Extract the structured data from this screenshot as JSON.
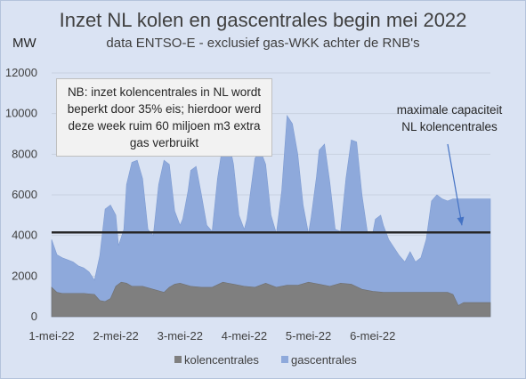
{
  "chart_data": {
    "type": "area",
    "title": "Inzet NL kolen en gascentrales begin mei 2022",
    "subtitle": "data ENTSO-E - exclusief gas-WKK achter de RNB's",
    "ylabel": "MW",
    "ylim": [
      0,
      12000
    ],
    "yticks": [
      "0",
      "2000",
      "4000",
      "6000",
      "8000",
      "10000",
      "12000"
    ],
    "x_tick_labels": [
      "1-mei-22",
      "2-mei-22",
      "3-mei-22",
      "4-mei-22",
      "5-mei-22",
      "6-mei-22"
    ],
    "x_range_hours": [
      0,
      164
    ],
    "stacked": true,
    "series": [
      {
        "name": "kolencentrales",
        "color": "#7f7f7f",
        "x": [
          0,
          2,
          4,
          8,
          12,
          16,
          18,
          20,
          22,
          24,
          26,
          28,
          30,
          34,
          38,
          42,
          44,
          46,
          48,
          52,
          56,
          60,
          64,
          68,
          72,
          76,
          80,
          84,
          88,
          92,
          96,
          100,
          104,
          108,
          112,
          116,
          120,
          124,
          128,
          132,
          136,
          140,
          144,
          148,
          150,
          152,
          154,
          156,
          158,
          160,
          164
        ],
        "values": [
          1450,
          1200,
          1150,
          1150,
          1150,
          1100,
          800,
          750,
          900,
          1500,
          1700,
          1650,
          1500,
          1500,
          1350,
          1200,
          1450,
          1600,
          1650,
          1500,
          1450,
          1450,
          1700,
          1600,
          1500,
          1450,
          1650,
          1450,
          1550,
          1550,
          1700,
          1600,
          1500,
          1650,
          1600,
          1350,
          1250,
          1200,
          1200,
          1200,
          1200,
          1200,
          1200,
          1200,
          1100,
          550,
          700,
          700,
          700,
          700,
          700
        ]
      },
      {
        "name": "gascentrales",
        "color": "#8ea9db",
        "x": [
          0,
          2,
          4,
          6,
          8,
          10,
          12,
          14,
          16,
          18,
          20,
          22,
          24,
          25,
          27,
          28,
          30,
          32,
          34,
          36,
          38,
          40,
          42,
          44,
          46,
          48,
          49,
          51,
          52,
          54,
          56,
          58,
          60,
          62,
          64,
          66,
          68,
          70,
          72,
          73,
          75,
          76,
          78,
          80,
          82,
          84,
          86,
          88,
          90,
          92,
          94,
          96,
          97,
          99,
          100,
          102,
          104,
          106,
          108,
          110,
          112,
          114,
          116,
          118,
          120,
          121,
          123,
          124,
          126,
          128,
          130,
          132,
          134,
          136,
          138,
          140,
          142,
          144,
          146,
          148,
          150,
          152,
          154,
          156,
          158,
          160,
          162,
          164
        ],
        "totals": [
          3800,
          3050,
          2900,
          2800,
          2700,
          2500,
          2400,
          2200,
          1800,
          3000,
          5300,
          5500,
          5000,
          3500,
          4300,
          6500,
          7600,
          7700,
          6800,
          4300,
          4000,
          6500,
          7700,
          7500,
          5200,
          4500,
          4800,
          6200,
          7200,
          7400,
          6000,
          4500,
          4200,
          6800,
          8500,
          8800,
          7500,
          5000,
          4300,
          4800,
          6800,
          7800,
          8200,
          7500,
          5000,
          4100,
          6200,
          9900,
          9500,
          8000,
          5500,
          4100,
          4900,
          6900,
          8200,
          8500,
          6600,
          4300,
          4200,
          6800,
          8700,
          8600,
          6000,
          4200,
          4100,
          4800,
          5000,
          4500,
          3800,
          3400,
          3000,
          2700,
          3200,
          2700,
          2900,
          3800,
          5700,
          6000,
          5800,
          5700,
          5800,
          5800,
          5800,
          5800,
          5800,
          5800,
          5800,
          5800
        ]
      }
    ],
    "hline": {
      "value": 4150,
      "color": "#262626"
    },
    "annotations": {
      "note": "NB: inzet kolencentrales in NL wordt beperkt door 35% eis; hierdoor werd deze week ruim 60 miljoen m3 extra gas verbruikt",
      "capacity_label_1": "maximale capaciteit",
      "capacity_label_2": "NL kolencentrales"
    },
    "legend": {
      "position": "bottom"
    },
    "grid": true
  }
}
